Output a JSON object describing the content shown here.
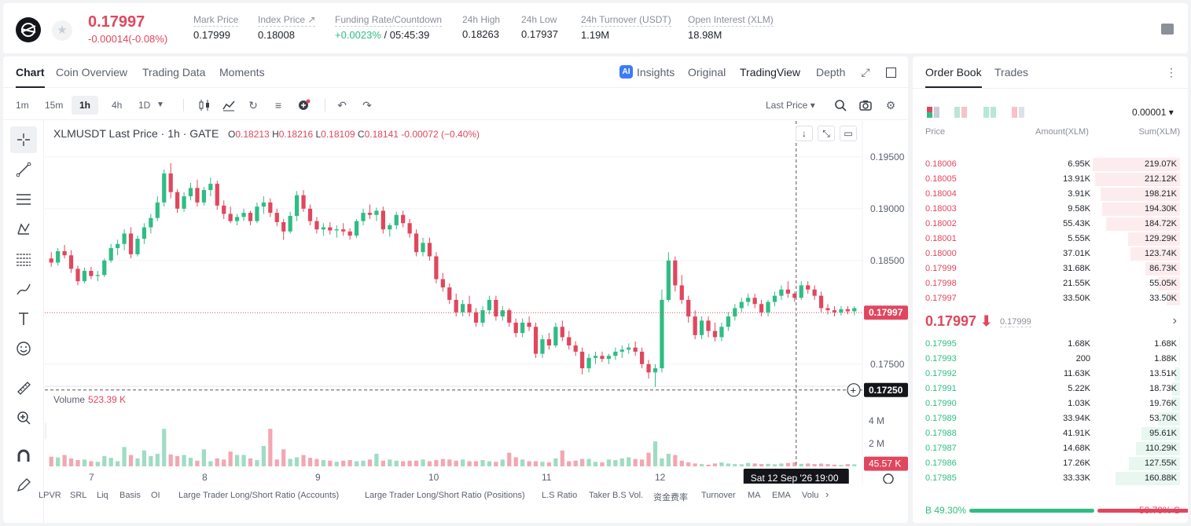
{
  "header": {
    "last_price": "0.17997",
    "change": "-0.00014(-0.08%)",
    "stats": [
      {
        "label": "Mark Price",
        "value": "0.17999"
      },
      {
        "label": "Index Price ↗",
        "value": "0.18008"
      },
      {
        "label": "Funding Rate/Countdown",
        "value_up": "+0.0023%",
        "value": " / 05:45:39"
      },
      {
        "label": "24h High",
        "value": "0.18263"
      },
      {
        "label": "24h Low",
        "value": "0.17937"
      },
      {
        "label": "24h Turnover (USDT)",
        "value": "1.19M"
      },
      {
        "label": "Open Interest (XLM)",
        "value": "18.98M"
      }
    ]
  },
  "chart_panel": {
    "tabs": [
      "Chart",
      "Coin Overview",
      "Trading Data",
      "Moments"
    ],
    "ai_badge": "AI",
    "views": [
      "Insights",
      "Original",
      "TradingView",
      "Depth"
    ],
    "intervals": [
      "1m",
      "15m",
      "1h",
      "4h",
      "1D"
    ],
    "price_source": "Last Price ▾",
    "legend": {
      "symbol": "XLMUSDT Last Price · 1h · GATE",
      "o_label": "O",
      "o": "0.18213",
      "h_label": "H",
      "h": "0.18216",
      "l_label": "L",
      "l": "0.18109",
      "c_label": "C",
      "c": "0.18141",
      "change": "-0.00072 (−0.40%)"
    },
    "volume_legend": {
      "label": "Volume",
      "value": "523.39 K"
    },
    "crosshair_time": "Sat 12 Sep '26   19:00",
    "indicators": [
      "LPVR",
      "SRL",
      "Liq",
      "Basis",
      "OI",
      "Large Trader Long/Short Ratio (Accounts)",
      "Large Trader Long/Short Ratio (Positions)",
      "L.S Ratio",
      "Taker B.S Vol.",
      "资金费率",
      "Turnover",
      "MA",
      "EMA",
      "Volu"
    ]
  },
  "chart_data": {
    "type": "candlestick",
    "x_tick_labels": [
      "7",
      "8",
      "9",
      "10",
      "11",
      "12"
    ],
    "price_axis_ticks": [
      "0.19500",
      "0.19000",
      "0.18500",
      "0.17500"
    ],
    "price_ylim": [
      0.1715,
      0.1965
    ],
    "last_price_label": "0.17997",
    "crosshair_price_label": "0.17250",
    "volume_axis_ticks": [
      "4 M",
      "2 M"
    ],
    "volume_ylim": [
      0,
      4.7
    ],
    "crosshair_volume_label": "45.57 K",
    "candles": [
      [
        0.1852,
        0.1858,
        0.1844,
        0.1848
      ],
      [
        0.1848,
        0.1862,
        0.1845,
        0.1859
      ],
      [
        0.1859,
        0.1865,
        0.1852,
        0.1855
      ],
      [
        0.1855,
        0.186,
        0.1838,
        0.1842
      ],
      [
        0.1842,
        0.1845,
        0.1826,
        0.183
      ],
      [
        0.183,
        0.1843,
        0.1828,
        0.184
      ],
      [
        0.184,
        0.1844,
        0.1832,
        0.1835
      ],
      [
        0.1835,
        0.184,
        0.183,
        0.1836
      ],
      [
        0.1836,
        0.1852,
        0.1834,
        0.185
      ],
      [
        0.185,
        0.1866,
        0.1848,
        0.1862
      ],
      [
        0.1862,
        0.187,
        0.1855,
        0.1866
      ],
      [
        0.1866,
        0.188,
        0.186,
        0.1876
      ],
      [
        0.1876,
        0.1882,
        0.1852,
        0.1856
      ],
      [
        0.1856,
        0.1874,
        0.1854,
        0.1871
      ],
      [
        0.1871,
        0.1886,
        0.1866,
        0.1882
      ],
      [
        0.1882,
        0.1895,
        0.1876,
        0.1891
      ],
      [
        0.1891,
        0.1912,
        0.1888,
        0.1906
      ],
      [
        0.1906,
        0.1938,
        0.1902,
        0.1934
      ],
      [
        0.1934,
        0.1944,
        0.191,
        0.1916
      ],
      [
        0.1916,
        0.1919,
        0.1896,
        0.19
      ],
      [
        0.19,
        0.1916,
        0.1897,
        0.1912
      ],
      [
        0.1912,
        0.1925,
        0.1908,
        0.192
      ],
      [
        0.192,
        0.1928,
        0.1902,
        0.1906
      ],
      [
        0.1906,
        0.1921,
        0.1903,
        0.1918
      ],
      [
        0.1918,
        0.193,
        0.1912,
        0.1924
      ],
      [
        0.1924,
        0.1927,
        0.1899,
        0.1903
      ],
      [
        0.1903,
        0.1908,
        0.189,
        0.1895
      ],
      [
        0.1895,
        0.1902,
        0.1886,
        0.1888
      ],
      [
        0.1888,
        0.1895,
        0.1884,
        0.1892
      ],
      [
        0.1892,
        0.19,
        0.1888,
        0.1896
      ],
      [
        0.1896,
        0.1898,
        0.1884,
        0.1888
      ],
      [
        0.1888,
        0.1906,
        0.1886,
        0.1902
      ],
      [
        0.1902,
        0.1912,
        0.1895,
        0.1906
      ],
      [
        0.1906,
        0.191,
        0.1892,
        0.1896
      ],
      [
        0.1896,
        0.19,
        0.1883,
        0.1887
      ],
      [
        0.1887,
        0.189,
        0.187,
        0.1878
      ],
      [
        0.1878,
        0.1897,
        0.1876,
        0.1893
      ],
      [
        0.1893,
        0.1917,
        0.1888,
        0.1913
      ],
      [
        0.1913,
        0.1918,
        0.1897,
        0.19
      ],
      [
        0.19,
        0.1904,
        0.1884,
        0.1888
      ],
      [
        0.1888,
        0.1892,
        0.1876,
        0.188
      ],
      [
        0.188,
        0.1886,
        0.1874,
        0.1882
      ],
      [
        0.1882,
        0.1887,
        0.1875,
        0.1879
      ],
      [
        0.1879,
        0.1884,
        0.1872,
        0.188
      ],
      [
        0.188,
        0.1886,
        0.1874,
        0.1878
      ],
      [
        0.1878,
        0.1881,
        0.187,
        0.1874
      ],
      [
        0.1874,
        0.189,
        0.1872,
        0.1888
      ],
      [
        0.1888,
        0.19,
        0.1884,
        0.1896
      ],
      [
        0.1896,
        0.1904,
        0.189,
        0.1894
      ],
      [
        0.1894,
        0.1901,
        0.1888,
        0.1898
      ],
      [
        0.1898,
        0.1902,
        0.1876,
        0.188
      ],
      [
        0.188,
        0.1886,
        0.1873,
        0.1884
      ],
      [
        0.1884,
        0.1897,
        0.188,
        0.1894
      ],
      [
        0.1894,
        0.1898,
        0.1882,
        0.1886
      ],
      [
        0.1886,
        0.189,
        0.1872,
        0.1876
      ],
      [
        0.1876,
        0.188,
        0.1854,
        0.1858
      ],
      [
        0.1858,
        0.1872,
        0.1854,
        0.1867
      ],
      [
        0.1867,
        0.1872,
        0.185,
        0.1854
      ],
      [
        0.1854,
        0.1858,
        0.1828,
        0.1832
      ],
      [
        0.1832,
        0.1838,
        0.182,
        0.1824
      ],
      [
        0.1824,
        0.1828,
        0.1808,
        0.1812
      ],
      [
        0.1812,
        0.1818,
        0.1796,
        0.18
      ],
      [
        0.18,
        0.1812,
        0.1796,
        0.1808
      ],
      [
        0.1808,
        0.1816,
        0.1796,
        0.18
      ],
      [
        0.18,
        0.1804,
        0.1786,
        0.179
      ],
      [
        0.179,
        0.1806,
        0.1786,
        0.1802
      ],
      [
        0.1802,
        0.1816,
        0.1798,
        0.1812
      ],
      [
        0.1812,
        0.1816,
        0.1792,
        0.1796
      ],
      [
        0.1796,
        0.1806,
        0.1792,
        0.1802
      ],
      [
        0.1802,
        0.1804,
        0.1786,
        0.179
      ],
      [
        0.179,
        0.1794,
        0.1776,
        0.178
      ],
      [
        0.178,
        0.1794,
        0.1776,
        0.179
      ],
      [
        0.179,
        0.1796,
        0.1782,
        0.1786
      ],
      [
        0.1786,
        0.179,
        0.1756,
        0.176
      ],
      [
        0.176,
        0.1778,
        0.1756,
        0.1774
      ],
      [
        0.1774,
        0.178,
        0.1764,
        0.1768
      ],
      [
        0.1768,
        0.179,
        0.1766,
        0.1786
      ],
      [
        0.1786,
        0.1792,
        0.1772,
        0.1776
      ],
      [
        0.1776,
        0.1782,
        0.1764,
        0.1768
      ],
      [
        0.1768,
        0.1772,
        0.1758,
        0.1762
      ],
      [
        0.1762,
        0.1766,
        0.174,
        0.1746
      ],
      [
        0.1746,
        0.176,
        0.1742,
        0.1756
      ],
      [
        0.1756,
        0.1762,
        0.175,
        0.1758
      ],
      [
        0.1758,
        0.1762,
        0.1752,
        0.1755
      ],
      [
        0.1755,
        0.176,
        0.175,
        0.1758
      ],
      [
        0.1758,
        0.1766,
        0.1754,
        0.1762
      ],
      [
        0.1762,
        0.1768,
        0.1756,
        0.1764
      ],
      [
        0.1764,
        0.177,
        0.176,
        0.1766
      ],
      [
        0.1766,
        0.1772,
        0.1758,
        0.1762
      ],
      [
        0.1762,
        0.1766,
        0.1746,
        0.175
      ],
      [
        0.175,
        0.1754,
        0.1736,
        0.1742
      ],
      [
        0.1742,
        0.175,
        0.1728,
        0.1746
      ],
      [
        0.1746,
        0.1822,
        0.1742,
        0.1812
      ],
      [
        0.1812,
        0.1858,
        0.181,
        0.185
      ],
      [
        0.185,
        0.1854,
        0.182,
        0.1826
      ],
      [
        0.1826,
        0.1836,
        0.1808,
        0.1812
      ],
      [
        0.1812,
        0.1816,
        0.179,
        0.1796
      ],
      [
        0.1796,
        0.1802,
        0.1774,
        0.1778
      ],
      [
        0.1778,
        0.1796,
        0.1774,
        0.1792
      ],
      [
        0.1792,
        0.1796,
        0.1776,
        0.1782
      ],
      [
        0.1782,
        0.179,
        0.1772,
        0.1776
      ],
      [
        0.1776,
        0.179,
        0.1772,
        0.1786
      ],
      [
        0.1786,
        0.18,
        0.1782,
        0.1796
      ],
      [
        0.1796,
        0.1808,
        0.1792,
        0.1804
      ],
      [
        0.1804,
        0.1814,
        0.18,
        0.181
      ],
      [
        0.181,
        0.1818,
        0.1806,
        0.1814
      ],
      [
        0.1814,
        0.1818,
        0.1804,
        0.1808
      ],
      [
        0.1808,
        0.1812,
        0.1796,
        0.18
      ],
      [
        0.18,
        0.1812,
        0.1796,
        0.181
      ],
      [
        0.181,
        0.182,
        0.1806,
        0.1816
      ],
      [
        0.1816,
        0.1826,
        0.1812,
        0.1822
      ],
      [
        0.1822,
        0.183,
        0.1814,
        0.1818
      ],
      [
        0.1818,
        0.182,
        0.181,
        0.1814
      ],
      [
        0.1814,
        0.183,
        0.1812,
        0.1826
      ],
      [
        0.1826,
        0.183,
        0.1818,
        0.1822
      ],
      [
        0.1822,
        0.1826,
        0.1812,
        0.1816
      ],
      [
        0.1816,
        0.182,
        0.18,
        0.1804
      ],
      [
        0.1804,
        0.1808,
        0.1798,
        0.1802
      ],
      [
        0.1802,
        0.1806,
        0.1796,
        0.18
      ],
      [
        0.18,
        0.1806,
        0.1797,
        0.1803
      ],
      [
        0.1803,
        0.1806,
        0.1798,
        0.1801
      ],
      [
        0.1801,
        0.1806,
        0.1797,
        0.1804
      ]
    ],
    "volumes": [
      0.85,
      0.78,
      1.0,
      0.7,
      0.55,
      0.6,
      0.45,
      0.4,
      0.9,
      0.75,
      0.45,
      1.7,
      1.0,
      0.7,
      1.4,
      0.9,
      1.1,
      3.3,
      1.05,
      0.9,
      1.0,
      0.75,
      0.5,
      1.5,
      0.45,
      0.7,
      0.6,
      1.3,
      1.0,
      1.0,
      0.7,
      0.55,
      1.8,
      3.3,
      0.6,
      1.5,
      0.65,
      0.8,
      1.0,
      0.75,
      0.65,
      0.55,
      0.5,
      0.4,
      0.5,
      0.55,
      0.45,
      0.5,
      0.6,
      1.1,
      0.5,
      0.6,
      0.5,
      0.45,
      0.5,
      0.5,
      0.6,
      0.45,
      0.55,
      0.65,
      0.6,
      0.5,
      0.6,
      0.45,
      0.45,
      0.55,
      0.45,
      0.4,
      0.6,
      1.2,
      0.8,
      0.6,
      0.45,
      0.45,
      0.4,
      0.35,
      0.7,
      1.4,
      0.45,
      0.5,
      0.65,
      0.65,
      0.4,
      0.35,
      0.6,
      0.55,
      0.7,
      0.8,
      0.65,
      0.6,
      1.2,
      2.2,
      0.7,
      1.1,
      1.0,
      0.5,
      0.35,
      0.25,
      0.2,
      0.15,
      0.25,
      0.35,
      0.25,
      0.2,
      0.18,
      0.3,
      0.25,
      0.2,
      0.22,
      0.18,
      0.25,
      0.3,
      0.35,
      0.22,
      0.25,
      0.2,
      0.24,
      0.2,
      0.15,
      0.12,
      0.2,
      0.18
    ]
  },
  "order_book": {
    "tabs": [
      "Order Book",
      "Trades"
    ],
    "precision": "0.00001 ▾",
    "headers": {
      "price": "Price",
      "amount": "Amount(XLM)",
      "sum": "Sum(XLM)"
    },
    "asks": [
      {
        "price": "0.18006",
        "amount": "6.95K",
        "sum": "219.07K",
        "depth": 0.99
      },
      {
        "price": "0.18005",
        "amount": "13.91K",
        "sum": "212.12K",
        "depth": 0.96
      },
      {
        "price": "0.18004",
        "amount": "3.91K",
        "sum": "198.21K",
        "depth": 0.9
      },
      {
        "price": "0.18003",
        "amount": "9.58K",
        "sum": "194.30K",
        "depth": 0.88
      },
      {
        "price": "0.18002",
        "amount": "55.43K",
        "sum": "184.72K",
        "depth": 0.84
      },
      {
        "price": "0.18001",
        "amount": "5.55K",
        "sum": "129.29K",
        "depth": 0.59
      },
      {
        "price": "0.18000",
        "amount": "37.01K",
        "sum": "123.74K",
        "depth": 0.56
      },
      {
        "price": "0.17999",
        "amount": "31.68K",
        "sum": "86.73K",
        "depth": 0.39
      },
      {
        "price": "0.17998",
        "amount": "21.55K",
        "sum": "55.05K",
        "depth": 0.25
      },
      {
        "price": "0.17997",
        "amount": "33.50K",
        "sum": "33.50K",
        "depth": 0.15
      }
    ],
    "mid_price": "0.17997 ⬇",
    "mark_price": "0.17999",
    "bids": [
      {
        "price": "0.17995",
        "amount": "1.68K",
        "sum": "1.68K",
        "depth": 0.01
      },
      {
        "price": "0.17993",
        "amount": "200",
        "sum": "1.88K",
        "depth": 0.01
      },
      {
        "price": "0.17992",
        "amount": "11.63K",
        "sum": "13.51K",
        "depth": 0.06
      },
      {
        "price": "0.17991",
        "amount": "5.22K",
        "sum": "18.73K",
        "depth": 0.09
      },
      {
        "price": "0.17990",
        "amount": "1.03K",
        "sum": "19.76K",
        "depth": 0.09
      },
      {
        "price": "0.17989",
        "amount": "33.94K",
        "sum": "53.70K",
        "depth": 0.25
      },
      {
        "price": "0.17988",
        "amount": "41.91K",
        "sum": "95.61K",
        "depth": 0.44
      },
      {
        "price": "0.17987",
        "amount": "14.68K",
        "sum": "110.29K",
        "depth": 0.5
      },
      {
        "price": "0.17986",
        "amount": "17.26K",
        "sum": "127.55K",
        "depth": 0.58
      },
      {
        "price": "0.17985",
        "amount": "33.33K",
        "sum": "160.88K",
        "depth": 0.73
      }
    ],
    "buy_ratio": "B 49.30%",
    "sell_ratio": "50.70% S",
    "buy_fraction": 0.493
  },
  "colors": {
    "up": "#2fbd85",
    "down": "#e0475e"
  }
}
